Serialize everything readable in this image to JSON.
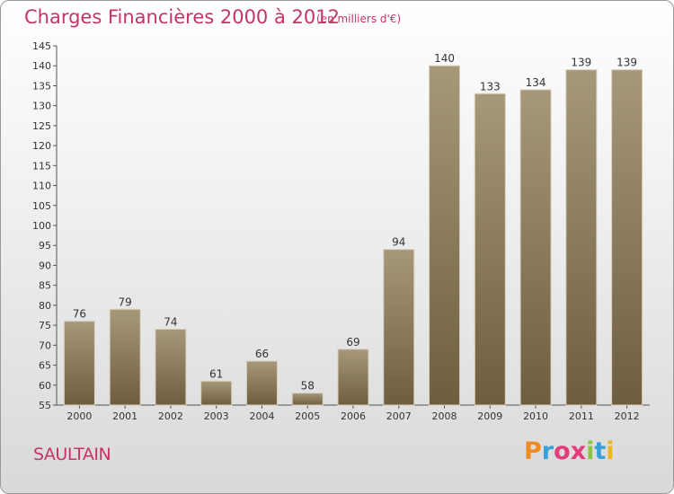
{
  "header": {
    "title": "Charges Financières 2000 à 2012",
    "unit": "(en milliers d'€)"
  },
  "footer": {
    "commune": "SAULTAIN",
    "logo": [
      "P",
      "r",
      "o",
      "x",
      "i",
      "t",
      "i"
    ],
    "logo_colors": [
      "#f08a24",
      "#3aa0d8",
      "#e23c7a",
      "#e23c7a",
      "#8dc63f",
      "#3aa0d8",
      "#f0b323"
    ]
  },
  "colors": {
    "bar_top": "#a8987a",
    "bar_bottom": "#6e5d3f",
    "accent": "#c4336a"
  },
  "chart_data": {
    "type": "bar",
    "title": "Charges Financières 2000 à 2012",
    "subtitle": "(en milliers d'€)",
    "categories": [
      "2000",
      "2001",
      "2002",
      "2003",
      "2004",
      "2005",
      "2006",
      "2007",
      "2008",
      "2009",
      "2010",
      "2011",
      "2012"
    ],
    "values": [
      76,
      79,
      74,
      61,
      66,
      58,
      69,
      94,
      140,
      133,
      134,
      139,
      139
    ],
    "ylim": [
      55,
      145
    ],
    "yticks": [
      55,
      60,
      65,
      70,
      75,
      80,
      85,
      90,
      95,
      100,
      105,
      110,
      115,
      120,
      125,
      130,
      135,
      140,
      145
    ],
    "grid": false,
    "data_labels": true
  }
}
